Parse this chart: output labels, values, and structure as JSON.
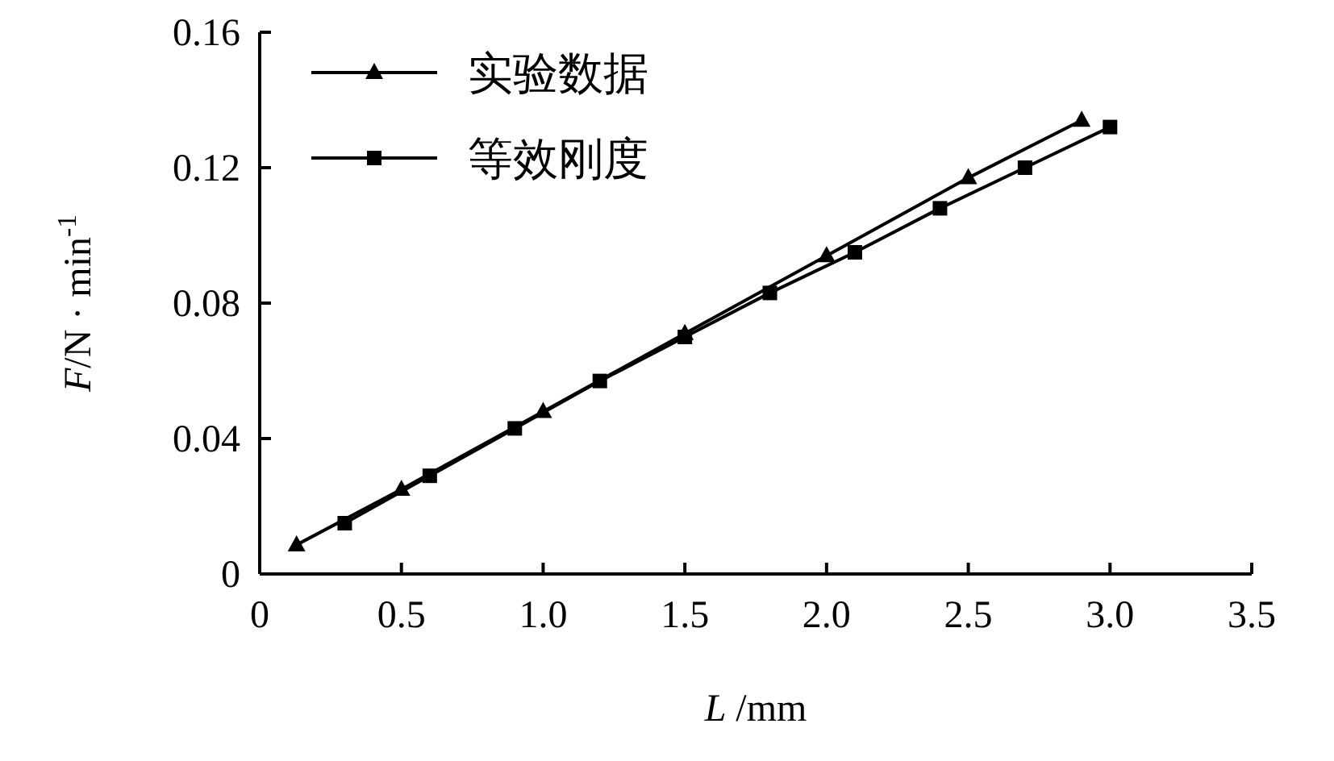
{
  "chart_data": {
    "type": "line",
    "xlabel": "*L* /mm",
    "ylabel": "*F*/N · min$^{-1}$",
    "xlim": [
      0,
      3.5
    ],
    "ylim": [
      0,
      0.16
    ],
    "xticks": [
      0,
      0.5,
      {
        "value": 1,
        "label": "1.0"
      },
      1.5,
      {
        "value": 2,
        "label": "2.0"
      },
      2.5,
      {
        "value": 3,
        "label": "3.0"
      },
      3.5
    ],
    "yticks": [
      0,
      0.04,
      0.08,
      0.12,
      0.16
    ],
    "legend": "top left",
    "grid": false,
    "series": [
      {
        "name": "实验数据",
        "color": "#000000",
        "marker": "triangle",
        "x": [
          0.13,
          0.5,
          1.0,
          1.5,
          2.0,
          2.5,
          2.9
        ],
        "values": [
          0.0086,
          0.025,
          0.048,
          0.071,
          0.094,
          0.117,
          0.134
        ]
      },
      {
        "name": "等效刚度",
        "color": "#000000",
        "marker": "square",
        "x": [
          0.3,
          0.6,
          0.9,
          1.2,
          1.5,
          1.8,
          2.1,
          2.4,
          2.7,
          3.0
        ],
        "values": [
          0.015,
          0.029,
          0.043,
          0.057,
          0.07,
          0.083,
          0.095,
          0.108,
          0.12,
          0.132
        ]
      }
    ]
  }
}
